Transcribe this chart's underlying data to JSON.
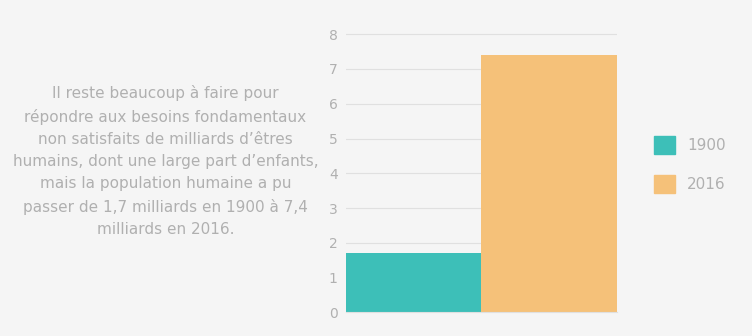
{
  "categories": [
    "1900",
    "2016"
  ],
  "values": [
    1.7,
    7.4
  ],
  "bar_colors": [
    "#3dbfb8",
    "#f5c179"
  ],
  "legend_labels": [
    "1900",
    "2016"
  ],
  "ylim": [
    0,
    8.5
  ],
  "yticks": [
    0,
    1,
    2,
    3,
    4,
    5,
    6,
    7,
    8
  ],
  "background_color": "#f5f5f5",
  "text_color": "#b0b0b0",
  "grid_color": "#e0e0e0",
  "annotation_text": "Il reste beaucoup à faire pour\nrépondre aux besoins fondamentaux\nnon satisfaits de milliards d’êtres\nhumains, dont une large part d’enfants,\nmais la population humaine a pu\npasser de 1,7 milliards en 1900 à 7,4\nmilliards en 2016.",
  "annotation_fontsize": 11,
  "tick_fontsize": 10,
  "legend_fontsize": 11
}
